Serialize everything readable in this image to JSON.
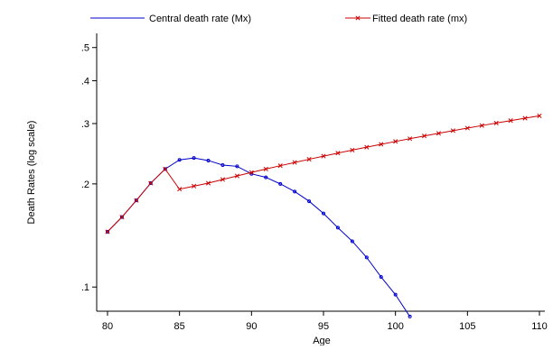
{
  "chart_data": {
    "type": "line",
    "title": "",
    "xlabel": "Age",
    "ylabel": "Death Rates (log scale)",
    "y_scale": "log",
    "xlim": [
      80,
      110
    ],
    "ylim": [
      0.085,
      0.55
    ],
    "x_ticks": [
      80,
      85,
      90,
      95,
      100,
      105,
      110
    ],
    "x_tick_labels": [
      "80",
      "85",
      "90",
      "95",
      "100",
      "105",
      "110"
    ],
    "y_ticks": [
      0.1,
      0.2,
      0.3,
      0.4,
      0.5
    ],
    "y_tick_labels": [
      ".1",
      ".2",
      ".3",
      ".4",
      ".5"
    ],
    "grid": false,
    "legend_position": "top",
    "series": [
      {
        "name": "Central  death rate (Mx)",
        "color": "#0000cc",
        "marker": "circle",
        "x": [
          80,
          81,
          82,
          83,
          84,
          85,
          86,
          87,
          88,
          89,
          90,
          91,
          92,
          93,
          94,
          95,
          96,
          97,
          98,
          99,
          100,
          101
        ],
        "y": [
          0.145,
          0.16,
          0.179,
          0.201,
          0.221,
          0.235,
          0.238,
          0.234,
          0.227,
          0.225,
          0.214,
          0.209,
          0.2,
          0.19,
          0.178,
          0.164,
          0.149,
          0.136,
          0.122,
          0.107,
          0.095,
          0.082
        ]
      },
      {
        "name": "Fitted death rate  (mx)",
        "color": "#cc0000",
        "marker": "x",
        "x": [
          80,
          81,
          82,
          83,
          84,
          85,
          86,
          87,
          88,
          89,
          90,
          91,
          92,
          93,
          94,
          95,
          96,
          97,
          98,
          99,
          100,
          101,
          102,
          103,
          104,
          105,
          106,
          107,
          108,
          109,
          110
        ],
        "y": [
          0.145,
          0.16,
          0.179,
          0.201,
          0.221,
          0.193,
          0.197,
          0.201,
          0.206,
          0.211,
          0.216,
          0.221,
          0.226,
          0.231,
          0.236,
          0.241,
          0.246,
          0.251,
          0.256,
          0.261,
          0.266,
          0.271,
          0.276,
          0.281,
          0.286,
          0.291,
          0.296,
          0.301,
          0.306,
          0.311,
          0.316
        ]
      }
    ]
  }
}
